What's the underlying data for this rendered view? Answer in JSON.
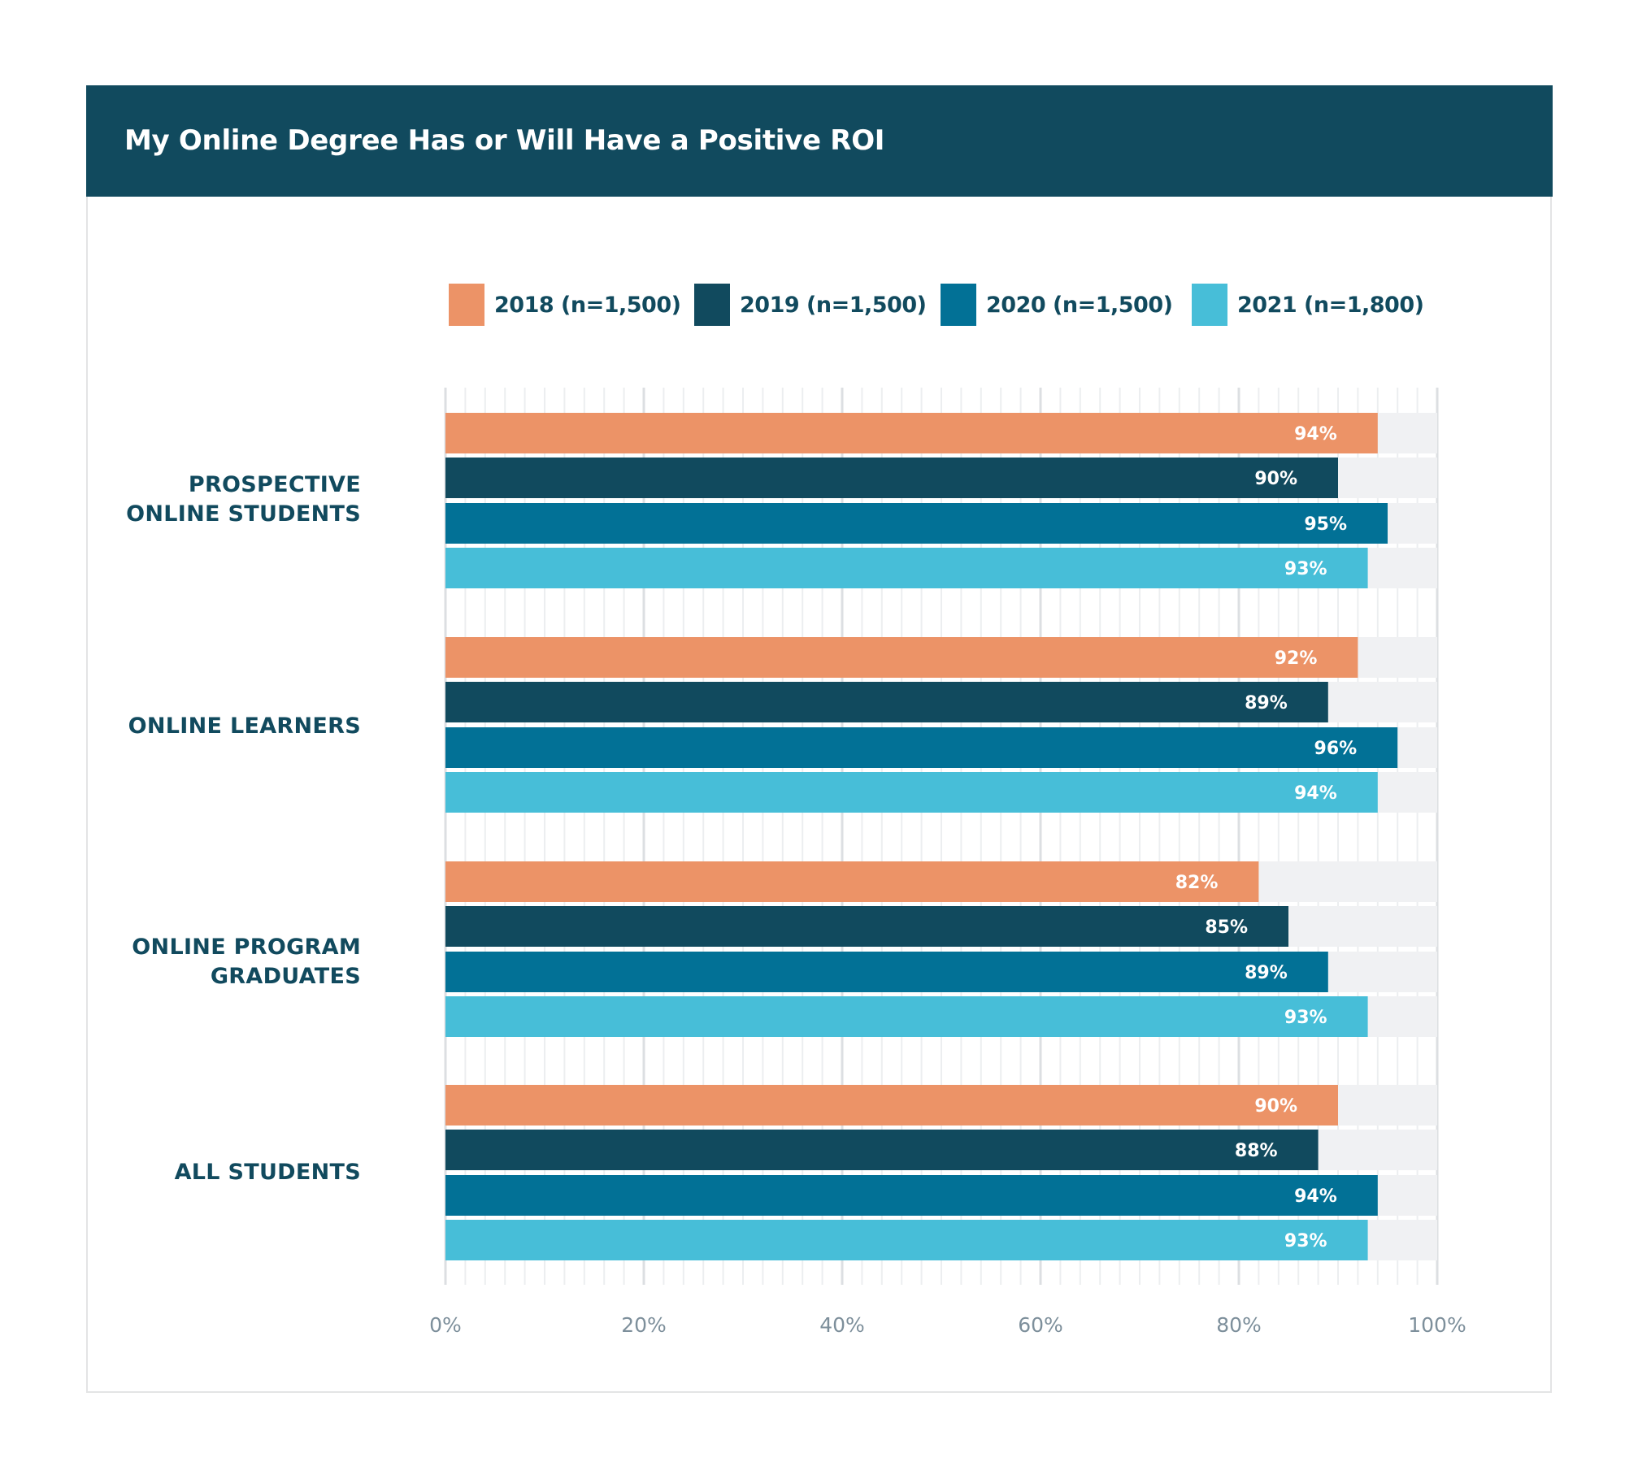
{
  "header": {
    "title": "My Online Degree Has or Will Have a Positive ROI"
  },
  "legend": [
    {
      "label": "2018 (n=1,500)",
      "color": "#ec9367"
    },
    {
      "label": "2019 (n=1,500)",
      "color": "#114a5e"
    },
    {
      "label": "2020 (n=1,500)",
      "color": "#027196"
    },
    {
      "label": "2021 (n=1,800)",
      "color": "#47bed8"
    }
  ],
  "chart_data": {
    "type": "bar",
    "orientation": "horizontal",
    "title": "My Online Degree Has or Will Have a Positive ROI",
    "xlabel": "",
    "ylabel": "",
    "xlim": [
      0,
      100
    ],
    "unit": "%",
    "grid": true,
    "legend_position": "top",
    "categories": [
      "PROSPECTIVE\nONLINE STUDENTS",
      "ONLINE LEARNERS",
      "ONLINE PROGRAM\nGRADUATES",
      "ALL STUDENTS"
    ],
    "series": [
      {
        "name": "2018 (n=1,500)",
        "color": "#ec9367",
        "values": [
          94,
          92,
          82,
          90
        ]
      },
      {
        "name": "2019 (n=1,500)",
        "color": "#114a5e",
        "values": [
          90,
          89,
          85,
          88
        ]
      },
      {
        "name": "2020 (n=1,500)",
        "color": "#027196",
        "values": [
          95,
          96,
          89,
          94
        ]
      },
      {
        "name": "2021 (n=1,800)",
        "color": "#47bed8",
        "values": [
          93,
          94,
          93,
          93
        ]
      }
    ],
    "x_ticks": [
      "0%",
      "20%",
      "40%",
      "60%",
      "80%",
      "100%"
    ],
    "x_tick_values": [
      0,
      20,
      40,
      60,
      80,
      100
    ],
    "colors": {
      "track": "#f0f1f3",
      "grid_minor": "#eceef0",
      "grid_major": "#dcdfe2",
      "value_label": "#ffffff",
      "tick_label": "#7d8f9b"
    }
  }
}
